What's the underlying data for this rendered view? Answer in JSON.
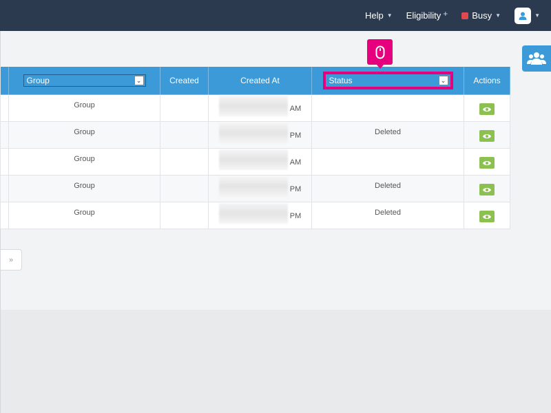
{
  "topbar": {
    "help_label": "Help",
    "eligibility_label": "Eligibility",
    "status_label": "Busy",
    "status_color": "#e0494f",
    "bg_color": "#2b3a4e"
  },
  "table": {
    "headers": {
      "group_filter": "Group",
      "created": "Created",
      "created_at": "Created At",
      "status_filter": "Status",
      "actions": "Actions"
    },
    "rows": [
      {
        "group": "Group",
        "time_suffix": "AM",
        "status": ""
      },
      {
        "group": "Group",
        "time_suffix": "PM",
        "status": "Deleted"
      },
      {
        "group": "Group",
        "time_suffix": "AM",
        "status": ""
      },
      {
        "group": "Group",
        "time_suffix": "PM",
        "status": "Deleted"
      },
      {
        "group": "Group",
        "time_suffix": "PM",
        "status": "Deleted"
      }
    ]
  },
  "pager": {
    "next_label": "»"
  },
  "colors": {
    "accent": "#3c9ad8",
    "highlight": "#e6007e",
    "view_button": "#8cc152"
  }
}
